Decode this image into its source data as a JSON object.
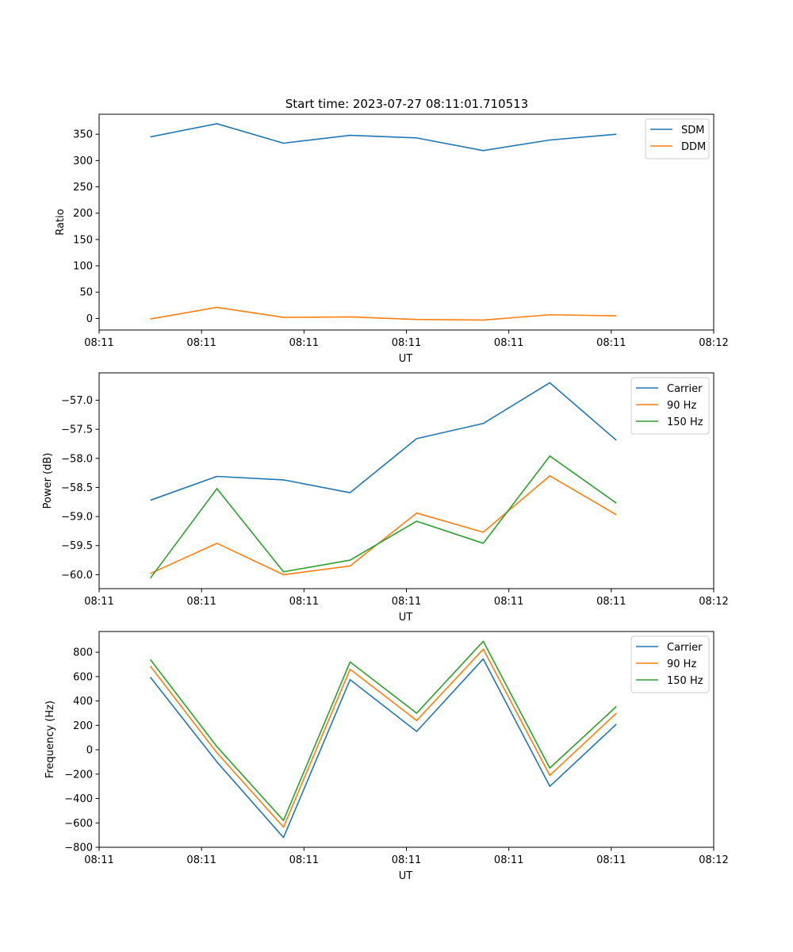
{
  "figure_title": "Start time: 2023-07-27 08:11:01.710513",
  "chart_data": [
    {
      "type": "line",
      "title": "Start time: 2023-07-27 08:11:01.710513",
      "xlabel": "UT",
      "ylabel": "Ratio",
      "xlim": [
        0,
        12
      ],
      "ylim": [
        -22,
        388
      ],
      "x_ticks": [
        {
          "value": 0,
          "label": "08:11"
        },
        {
          "value": 2,
          "label": "08:11"
        },
        {
          "value": 4,
          "label": "08:11"
        },
        {
          "value": 6,
          "label": "08:11"
        },
        {
          "value": 8,
          "label": "08:11"
        },
        {
          "value": 10,
          "label": "08:11"
        },
        {
          "value": 12,
          "label": "08:12"
        }
      ],
      "y_ticks": [
        0,
        50,
        100,
        150,
        200,
        250,
        300,
        350
      ],
      "y_tick_labels": [
        "0",
        "50",
        "100",
        "150",
        "200",
        "250",
        "300",
        "350"
      ],
      "legend_position": "top-right",
      "x": [
        1,
        2.3,
        3.6,
        4.9,
        6.2,
        7.5,
        8.8,
        10.1
      ],
      "series": [
        {
          "name": "SDM",
          "color": "#1f77b4",
          "values": [
            345,
            370,
            333,
            348,
            343,
            319,
            339,
            350
          ]
        },
        {
          "name": "DDM",
          "color": "#ff7f0e",
          "values": [
            -1,
            21,
            2,
            3,
            -2,
            -3,
            7,
            5
          ]
        }
      ]
    },
    {
      "type": "line",
      "title": "",
      "xlabel": "UT",
      "ylabel": "Power (dB)",
      "xlim": [
        0,
        12
      ],
      "ylim": [
        -60.24,
        -56.53
      ],
      "x_ticks": [
        {
          "value": 0,
          "label": "08:11"
        },
        {
          "value": 2,
          "label": "08:11"
        },
        {
          "value": 4,
          "label": "08:11"
        },
        {
          "value": 6,
          "label": "08:11"
        },
        {
          "value": 8,
          "label": "08:11"
        },
        {
          "value": 10,
          "label": "08:11"
        },
        {
          "value": 12,
          "label": "08:12"
        }
      ],
      "y_ticks": [
        -60,
        -59.5,
        -59,
        -58.5,
        -58,
        -57.5,
        -57
      ],
      "y_tick_labels": [
        "−60.0",
        "−59.5",
        "−59.0",
        "−58.5",
        "−58.0",
        "−57.5",
        "−57.0"
      ],
      "legend_position": "top-right",
      "x": [
        1,
        2.3,
        3.6,
        4.9,
        6.2,
        7.5,
        8.8,
        10.1
      ],
      "series": [
        {
          "name": "Carrier",
          "color": "#1f77b4",
          "values": [
            -58.72,
            -58.31,
            -58.37,
            -58.59,
            -57.66,
            -57.4,
            -56.7,
            -57.69
          ]
        },
        {
          "name": "90 Hz",
          "color": "#ff7f0e",
          "values": [
            -59.98,
            -59.46,
            -60.0,
            -59.85,
            -58.94,
            -59.27,
            -58.3,
            -58.97
          ]
        },
        {
          "name": "150 Hz",
          "color": "#2ca02c",
          "values": [
            -60.06,
            -58.52,
            -59.95,
            -59.75,
            -59.08,
            -59.46,
            -57.96,
            -58.77
          ]
        }
      ]
    },
    {
      "type": "line",
      "title": "",
      "xlabel": "UT",
      "ylabel": "Frequency (Hz)",
      "xlim": [
        0,
        12
      ],
      "ylim": [
        -800,
        970
      ],
      "x_ticks": [
        {
          "value": 0,
          "label": "08:11"
        },
        {
          "value": 2,
          "label": "08:11"
        },
        {
          "value": 4,
          "label": "08:11"
        },
        {
          "value": 6,
          "label": "08:11"
        },
        {
          "value": 8,
          "label": "08:11"
        },
        {
          "value": 10,
          "label": "08:11"
        },
        {
          "value": 12,
          "label": "08:12"
        }
      ],
      "y_ticks": [
        -800,
        -600,
        -400,
        -200,
        0,
        200,
        400,
        600,
        800
      ],
      "y_tick_labels": [
        "−800",
        "−600",
        "−400",
        "−200",
        "0",
        "200",
        "400",
        "600",
        "800"
      ],
      "legend_position": "top-right",
      "x": [
        1,
        2.3,
        3.6,
        4.9,
        6.2,
        7.5,
        8.8,
        10.1
      ],
      "series": [
        {
          "name": "Carrier",
          "color": "#1f77b4",
          "values": [
            595,
            -100,
            -720,
            575,
            150,
            745,
            -300,
            210
          ]
        },
        {
          "name": "90 Hz",
          "color": "#ff7f0e",
          "values": [
            685,
            -25,
            -635,
            660,
            240,
            825,
            -210,
            300
          ]
        },
        {
          "name": "150 Hz",
          "color": "#2ca02c",
          "values": [
            740,
            25,
            -580,
            720,
            300,
            890,
            -150,
            355
          ]
        }
      ]
    }
  ]
}
